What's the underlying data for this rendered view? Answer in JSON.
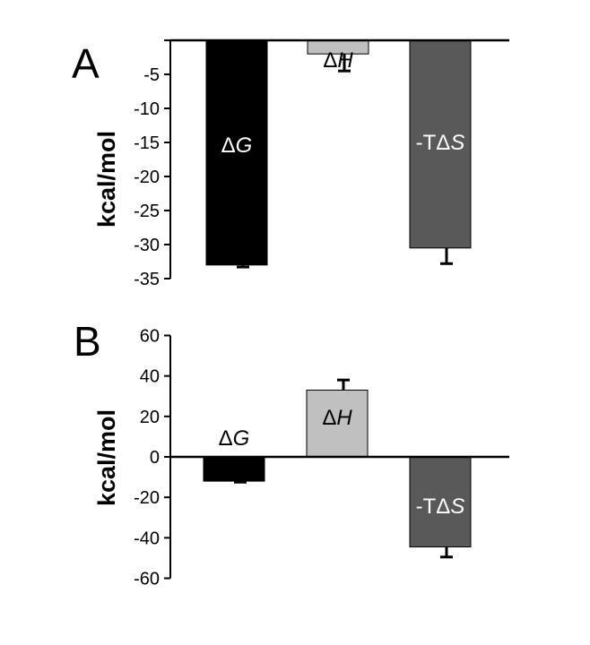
{
  "chart_data": [
    {
      "type": "bar",
      "panel_label": "A",
      "ylabel": "kcal/mol",
      "ylim": [
        -35,
        0
      ],
      "yticks": [
        -5,
        -10,
        -15,
        -20,
        -25,
        -30,
        -35
      ],
      "categories": [
        {
          "prefix": "Δ",
          "italic": "G"
        },
        {
          "prefix": "Δ",
          "italic": "H"
        },
        {
          "prefix": "-TΔ",
          "italic": "S"
        }
      ],
      "values": [
        -33.0,
        -2.0,
        -30.5
      ],
      "errors": [
        0.3,
        2.5,
        2.3
      ],
      "colors": [
        "#000000",
        "#c0c0c0",
        "#595959"
      ],
      "label_colors": [
        "#ffffff",
        "#000000",
        "#ffffff"
      ]
    },
    {
      "type": "bar",
      "panel_label": "B",
      "ylabel": "kcal/mol",
      "ylim": [
        -60,
        60
      ],
      "yticks": [
        60,
        40,
        20,
        0,
        -20,
        -40,
        -60
      ],
      "categories": [
        {
          "prefix": "Δ",
          "italic": "G"
        },
        {
          "prefix": "Δ",
          "italic": "H"
        },
        {
          "prefix": "-TΔ",
          "italic": "S"
        }
      ],
      "values": [
        -12.0,
        33.0,
        -44.5
      ],
      "errors": [
        0.5,
        5.0,
        5.0
      ],
      "colors": [
        "#000000",
        "#c0c0c0",
        "#595959"
      ],
      "label_colors": [
        "#000000",
        "#000000",
        "#ffffff"
      ]
    }
  ]
}
